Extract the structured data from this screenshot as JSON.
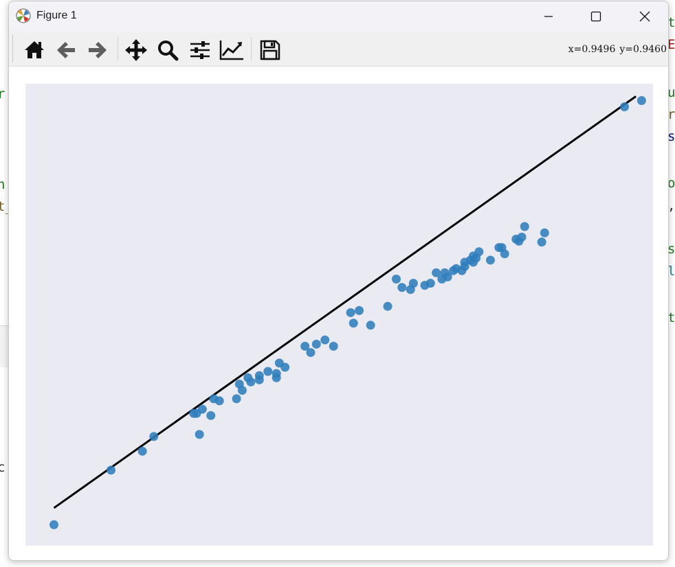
{
  "window": {
    "title": "Figure 1"
  },
  "toolbar": {
    "buttons": [
      {
        "name": "home-button",
        "icon": "home-icon"
      },
      {
        "name": "back-button",
        "icon": "arrow-left-icon"
      },
      {
        "name": "forward-button",
        "icon": "arrow-right-icon"
      },
      {
        "name": "pan-button",
        "icon": "move-icon"
      },
      {
        "name": "zoom-button",
        "icon": "magnifier-icon"
      },
      {
        "name": "subplots-button",
        "icon": "sliders-icon"
      },
      {
        "name": "axes-edit-button",
        "icon": "line-chart-icon"
      },
      {
        "name": "save-button",
        "icon": "floppy-disk-icon"
      }
    ],
    "x_readout": "x=0.9496",
    "y_readout": "y=0.9460"
  },
  "background_editor": {
    "fragments": [
      "t",
      "E",
      "u",
      "r",
      "s",
      "o",
      ",",
      "s",
      "l",
      "t",
      "r",
      "n",
      "t_",
      "c"
    ]
  },
  "chart_data": {
    "type": "scatter",
    "xlim": [
      -0.05,
      1.05
    ],
    "ylim": [
      -0.05,
      1.05
    ],
    "grid": false,
    "axes_visible": false,
    "colors": {
      "points": "#2f7ebc",
      "line": "#000000",
      "background": "#eaeaf2"
    },
    "points": [
      [
        0.0,
        0.0
      ],
      [
        0.1,
        0.13
      ],
      [
        0.155,
        0.175
      ],
      [
        0.175,
        0.21
      ],
      [
        0.245,
        0.265
      ],
      [
        0.26,
        0.275
      ],
      [
        0.25,
        0.265
      ],
      [
        0.275,
        0.26
      ],
      [
        0.255,
        0.215
      ],
      [
        0.28,
        0.3
      ],
      [
        0.29,
        0.295
      ],
      [
        0.32,
        0.3
      ],
      [
        0.33,
        0.32
      ],
      [
        0.325,
        0.335
      ],
      [
        0.34,
        0.35
      ],
      [
        0.345,
        0.34
      ],
      [
        0.36,
        0.355
      ],
      [
        0.375,
        0.365
      ],
      [
        0.39,
        0.36
      ],
      [
        0.405,
        0.375
      ],
      [
        0.395,
        0.385
      ],
      [
        0.39,
        0.35
      ],
      [
        0.44,
        0.425
      ],
      [
        0.46,
        0.43
      ],
      [
        0.45,
        0.41
      ],
      [
        0.475,
        0.44
      ],
      [
        0.49,
        0.425
      ],
      [
        0.525,
        0.48
      ],
      [
        0.52,
        0.505
      ],
      [
        0.535,
        0.51
      ],
      [
        0.555,
        0.475
      ],
      [
        0.585,
        0.52
      ],
      [
        0.61,
        0.565
      ],
      [
        0.6,
        0.585
      ],
      [
        0.625,
        0.56
      ],
      [
        0.65,
        0.57
      ],
      [
        0.66,
        0.575
      ],
      [
        0.68,
        0.585
      ],
      [
        0.69,
        0.59
      ],
      [
        0.685,
        0.6
      ],
      [
        0.715,
        0.605
      ],
      [
        0.705,
        0.61
      ],
      [
        0.72,
        0.615
      ],
      [
        0.73,
        0.63
      ],
      [
        0.735,
        0.64
      ],
      [
        0.72,
        0.625
      ],
      [
        0.63,
        0.575
      ],
      [
        0.67,
        0.6
      ],
      [
        0.745,
        0.65
      ],
      [
        0.765,
        0.63
      ],
      [
        0.74,
        0.635
      ],
      [
        0.785,
        0.66
      ],
      [
        0.81,
        0.68
      ],
      [
        0.815,
        0.675
      ],
      [
        0.825,
        0.71
      ],
      [
        0.79,
        0.645
      ],
      [
        0.78,
        0.66
      ],
      [
        1.0,
        0.995
      ],
      [
        1.03,
        1.01
      ],
      [
        0.86,
        0.695
      ],
      [
        0.855,
        0.673
      ],
      [
        0.82,
        0.685
      ],
      [
        0.735,
        0.625
      ],
      [
        0.7,
        0.605
      ],
      [
        0.36,
        0.345
      ]
    ],
    "fit_line": [
      [
        0.0,
        0.04
      ],
      [
        1.02,
        1.02
      ]
    ]
  }
}
